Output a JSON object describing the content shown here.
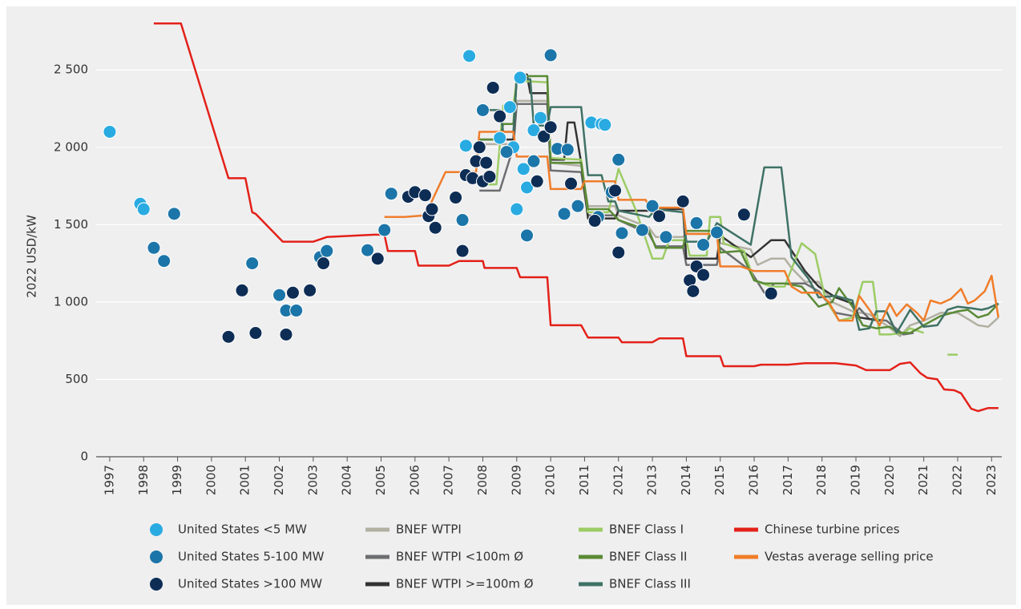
{
  "chart_data": {
    "type": "mixed",
    "y_label": "2022 USD/kW",
    "xlim": [
      1996.6,
      2023.3
    ],
    "xticks": [
      1997,
      1998,
      1999,
      2000,
      2001,
      2002,
      2003,
      2004,
      2005,
      2006,
      2007,
      2008,
      2009,
      2010,
      2011,
      2012,
      2013,
      2014,
      2015,
      2016,
      2017,
      2018,
      2019,
      2020,
      2021,
      2022,
      2023
    ],
    "ylim": [
      0,
      2900
    ],
    "yticks": [
      0,
      500,
      {
        "value": 1000,
        "label": "1 000"
      },
      {
        "value": 1500,
        "label": "1 500"
      },
      {
        "value": 2000,
        "label": "2 000"
      },
      {
        "value": 2500,
        "label": "2 500"
      }
    ],
    "grid": true,
    "legend": "bottom",
    "series": [
      {
        "name": "United States <5 MW",
        "type": "scatter",
        "color": "#29abe2",
        "x": [
          1997.0,
          1997.9,
          1998.0,
          2007.5,
          2007.6,
          2008.5,
          2008.8,
          2008.9,
          2009.0,
          2009.1,
          2009.2,
          2009.3,
          2009.5,
          2009.7,
          2011.2,
          2011.5,
          2011.6
        ],
        "values": [
          2100,
          1635,
          1600,
          2010,
          2590,
          2060,
          2260,
          2000,
          1600,
          2450,
          1860,
          1740,
          2110,
          2190,
          2160,
          2150,
          2145
        ]
      },
      {
        "name": "United States 5-100 MW",
        "type": "scatter",
        "color": "#1b75a8",
        "x": [
          1998.3,
          1998.6,
          1998.9,
          2001.2,
          2002.0,
          2002.2,
          2002.5,
          2003.2,
          2003.4,
          2004.6,
          2005.1,
          2005.3,
          2007.4,
          2008.0,
          2008.7,
          2009.3,
          2009.5,
          2010.0,
          2010.2,
          2010.5,
          2010.4,
          2010.8,
          2011.4,
          2011.8,
          2012.0,
          2012.1,
          2012.7,
          2013.0,
          2013.4,
          2014.3,
          2014.5,
          2014.9
        ],
        "values": [
          1350,
          1265,
          1570,
          1250,
          1045,
          945,
          945,
          1290,
          1330,
          1335,
          1465,
          1700,
          1530,
          2240,
          1970,
          1430,
          1910,
          2595,
          1990,
          1985,
          1570,
          1620,
          1550,
          1710,
          1920,
          1445,
          1465,
          1620,
          1420,
          1510,
          1370,
          1450
        ]
      },
      {
        "name": "United States >100 MW",
        "type": "scatter",
        "color": "#0d2d55",
        "x": [
          2000.5,
          2000.9,
          2001.3,
          2002.2,
          2002.4,
          2002.9,
          2003.3,
          2004.9,
          2005.8,
          2006.0,
          2006.3,
          2006.4,
          2006.5,
          2006.6,
          2007.2,
          2007.4,
          2007.5,
          2007.7,
          2007.8,
          2007.9,
          2008.0,
          2008.1,
          2008.2,
          2008.3,
          2008.5,
          2009.6,
          2009.8,
          2010.0,
          2010.6,
          2011.3,
          2011.9,
          2012.0,
          2013.2,
          2013.9,
          2014.1,
          2014.2,
          2014.3,
          2014.5,
          2015.7,
          2016.5
        ],
        "values": [
          775,
          1075,
          800,
          790,
          1060,
          1075,
          1250,
          1280,
          1680,
          1710,
          1690,
          1555,
          1600,
          1480,
          1675,
          1330,
          1820,
          1800,
          1910,
          2000,
          1780,
          1900,
          1810,
          2385,
          2200,
          1780,
          2070,
          2130,
          1765,
          1525,
          1720,
          1320,
          1555,
          1650,
          1140,
          1070,
          1230,
          1175,
          1565,
          1055
        ]
      },
      {
        "name": "BNEF WTPI",
        "type": "line",
        "color": "#b2b0a2",
        "x": [
          2007.9,
          2008.9,
          2009.0,
          2009.9,
          2010.0,
          2010.9,
          2011.1,
          2011.9,
          2012.0,
          2012.9,
          2013.1,
          2013.9,
          2014.0,
          2014.9,
          2015.0,
          2015.9,
          2016.1,
          2016.5,
          2016.9,
          2017.1,
          2017.5,
          2017.9,
          2018.3,
          2018.9,
          2019.4,
          2019.9,
          2020.3,
          2020.6,
          2021.0,
          2021.5,
          2022.0,
          2022.3,
          2022.6,
          2022.9,
          2023.2
        ],
        "values": [
          2020,
          2020,
          2300,
          2300,
          1900,
          1880,
          1620,
          1620,
          1560,
          1480,
          1420,
          1420,
          1440,
          1440,
          1380,
          1340,
          1240,
          1280,
          1280,
          1220,
          1130,
          1130,
          1000,
          940,
          920,
          850,
          780,
          850,
          880,
          930,
          930,
          890,
          850,
          840,
          900
        ]
      },
      {
        "name": "BNEF WTPI <100m Ø",
        "type": "line",
        "color": "#6d6e71",
        "x": [
          2007.9,
          2008.5,
          2008.9,
          2009.0,
          2009.9,
          2010.0,
          2010.9,
          2011.1,
          2011.9,
          2012.0,
          2012.9,
          2013.1,
          2013.9,
          2014.0,
          2014.9,
          2015.0,
          2015.9,
          2016.3,
          2016.6,
          2017.5,
          2017.9,
          2018.4,
          2018.9,
          2019.1,
          2019.4,
          2019.9,
          2020.4,
          2020.7
        ],
        "values": [
          1720,
          1720,
          2000,
          2280,
          2280,
          1850,
          1840,
          1560,
          1560,
          1530,
          1440,
          1360,
          1360,
          1240,
          1240,
          1350,
          1200,
          1060,
          1120,
          1120,
          1070,
          930,
          910,
          960,
          890,
          880,
          790,
          800
        ]
      },
      {
        "name": "BNEF WTPI >=100m Ø",
        "type": "line",
        "color": "#333333",
        "x": [
          2007.9,
          2008.9,
          2009.0,
          2009.3,
          2009.4,
          2009.9,
          2010.0,
          2010.4,
          2010.5,
          2010.7,
          2010.9,
          2011.1,
          2011.9,
          2012.0,
          2012.9,
          2013.1,
          2013.9,
          2014.0,
          2014.9,
          2015.0,
          2015.9,
          2016.5,
          2016.9,
          2017.5,
          2017.9,
          2018.4,
          2018.9,
          2019.1,
          2019.7
        ],
        "values": [
          2050,
          2050,
          2470,
          2470,
          2350,
          2350,
          1920,
          1920,
          2160,
          2160,
          1900,
          1540,
          1540,
          1590,
          1590,
          1600,
          1600,
          1280,
          1280,
          1430,
          1290,
          1400,
          1400,
          1200,
          1100,
          1030,
          990,
          900,
          880
        ]
      },
      {
        "name": "BNEF Class I",
        "type": "line",
        "color": "#9ccc65",
        "x": [
          2007.9,
          2008.4,
          2008.6,
          2008.9,
          2009.0,
          2009.9,
          2010.0,
          2010.9,
          2011.1,
          2011.7,
          2012.0,
          2012.5,
          2013.0,
          2013.3,
          2013.5,
          2014.0,
          2014.1,
          2014.6,
          2014.7,
          2015.0,
          2015.1,
          2015.7,
          2016.0,
          2016.5,
          2016.9,
          2017.4,
          2017.8,
          2018.1,
          2018.5,
          2018.9,
          2019.2,
          2019.5,
          2019.7,
          2020.0,
          2020.4,
          2020.6,
          2021.0,
          2021.3,
          2021.7,
          2022.0
        ],
        "values": [
          1760,
          1760,
          2270,
          2270,
          2430,
          2420,
          1930,
          1920,
          1580,
          1580,
          1860,
          1600,
          1280,
          1280,
          1400,
          1400,
          1300,
          1300,
          1550,
          1550,
          1380,
          1330,
          1140,
          1100,
          1100,
          1380,
          1310,
          1020,
          880,
          900,
          1130,
          1130,
          790,
          790,
          800,
          830,
          800,
          null,
          660,
          660
        ]
      },
      {
        "name": "BNEF Class II",
        "type": "line",
        "color": "#5a8a35",
        "x": [
          2007.9,
          2008.5,
          2008.6,
          2008.9,
          2009.0,
          2009.9,
          2010.0,
          2010.9,
          2011.1,
          2011.7,
          2012.0,
          2012.9,
          2013.1,
          2013.9,
          2014.0,
          2014.9,
          2015.0,
          2015.6,
          2016.0,
          2016.3,
          2016.9,
          2017.4,
          2017.9,
          2018.3,
          2018.5,
          2018.9,
          2019.2,
          2019.6,
          2020.0,
          2020.3,
          2020.6,
          2021.0,
          2021.5,
          2022.0,
          2022.3,
          2022.6,
          2022.9,
          2023.2
        ],
        "values": [
          2050,
          2050,
          2150,
          2150,
          2460,
          2460,
          1900,
          1900,
          1600,
          1600,
          1530,
          1460,
          1350,
          1350,
          1460,
          1460,
          1320,
          1330,
          1140,
          1120,
          1120,
          1100,
          970,
          1000,
          1090,
          970,
          850,
          830,
          840,
          800,
          800,
          850,
          910,
          940,
          950,
          900,
          920,
          990
        ]
      },
      {
        "name": "BNEF Class III",
        "type": "line",
        "color": "#3f7265",
        "x": [
          2007.9,
          2008.5,
          2008.6,
          2008.9,
          2009.0,
          2009.4,
          2009.5,
          2009.9,
          2010.0,
          2010.9,
          2011.1,
          2011.5,
          2011.7,
          2011.9,
          2012.0,
          2012.9,
          2013.1,
          2013.9,
          2014.0,
          2014.6,
          2014.9,
          2015.9,
          2016.3,
          2016.8,
          2017.1,
          2017.6,
          2017.9,
          2018.4,
          2018.9,
          2019.1,
          2019.4,
          2019.6,
          2019.9,
          2020.2,
          2020.6,
          2021.0,
          2021.4,
          2021.7,
          2022.0,
          2022.4,
          2022.7,
          2022.9,
          2023.2
        ],
        "values": [
          2240,
          2240,
          2100,
          2100,
          2440,
          2440,
          2140,
          2140,
          2260,
          2260,
          1820,
          1820,
          1650,
          1650,
          1590,
          1550,
          1600,
          1580,
          1390,
          1390,
          1510,
          1370,
          1870,
          1870,
          1290,
          1150,
          1030,
          1040,
          1010,
          820,
          830,
          940,
          940,
          800,
          950,
          840,
          850,
          950,
          970,
          960,
          950,
          960,
          990
        ]
      },
      {
        "name": "Chinese turbine prices",
        "type": "line",
        "color": "#e32119",
        "x": [
          1998.3,
          1999.1,
          2000.5,
          2001.0,
          2001.2,
          2001.3,
          2002.1,
          2003.0,
          2003.4,
          2004.8,
          2005.1,
          2005.2,
          2006.0,
          2006.1,
          2007.0,
          2007.3,
          2008.0,
          2008.05,
          2009.0,
          2009.1,
          2009.9,
          2010.0,
          2010.9,
          2011.1,
          2012.0,
          2012.1,
          2013.0,
          2013.2,
          2013.9,
          2014.0,
          2015.0,
          2015.1,
          2016.0,
          2016.2,
          2017.0,
          2017.5,
          2018.4,
          2019.0,
          2019.3,
          2020.0,
          2020.3,
          2020.6,
          2020.9,
          2021.1,
          2021.4,
          2021.6,
          2021.9,
          2022.1,
          2022.4,
          2022.6,
          2022.9,
          2023.2
        ],
        "values": [
          2800,
          2800,
          1800,
          1800,
          1580,
          1570,
          1390,
          1390,
          1420,
          1435,
          1435,
          1330,
          1330,
          1235,
          1235,
          1265,
          1265,
          1220,
          1220,
          1160,
          1160,
          850,
          850,
          770,
          770,
          740,
          740,
          765,
          765,
          650,
          650,
          585,
          585,
          595,
          595,
          605,
          605,
          590,
          560,
          560,
          600,
          610,
          540,
          510,
          500,
          435,
          430,
          410,
          310,
          295,
          315,
          315
        ]
      },
      {
        "name": "Vestas average selling price",
        "type": "line",
        "color": "#f07d2a",
        "x": [
          2005.1,
          2005.7,
          2006.3,
          2006.9,
          2007.8,
          2007.9,
          2008.9,
          2009.0,
          2009.9,
          2010.0,
          2010.9,
          2011.0,
          2011.9,
          2012.0,
          2012.8,
          2013.0,
          2013.2,
          2013.9,
          2014.0,
          2014.9,
          2015.0,
          2015.6,
          2016.0,
          2016.9,
          2017.1,
          2017.4,
          2017.9,
          2018.2,
          2018.5,
          2018.9,
          2019.1,
          2019.4,
          2019.7,
          2020.0,
          2020.2,
          2020.5,
          2020.8,
          2021.0,
          2021.2,
          2021.5,
          2021.8,
          2022.1,
          2022.3,
          2022.5,
          2022.8,
          2023.0,
          2023.2
        ],
        "values": [
          1550,
          1550,
          1560,
          1840,
          1840,
          2100,
          2100,
          1940,
          1940,
          1730,
          1730,
          1780,
          1780,
          1660,
          1660,
          1580,
          1610,
          1610,
          1440,
          1440,
          1230,
          1230,
          1200,
          1200,
          1100,
          1060,
          1060,
          1000,
          880,
          880,
          1040,
          950,
          850,
          990,
          910,
          985,
          930,
          880,
          1010,
          990,
          1020,
          1085,
          990,
          1010,
          1070,
          1170,
          900
        ]
      }
    ]
  }
}
